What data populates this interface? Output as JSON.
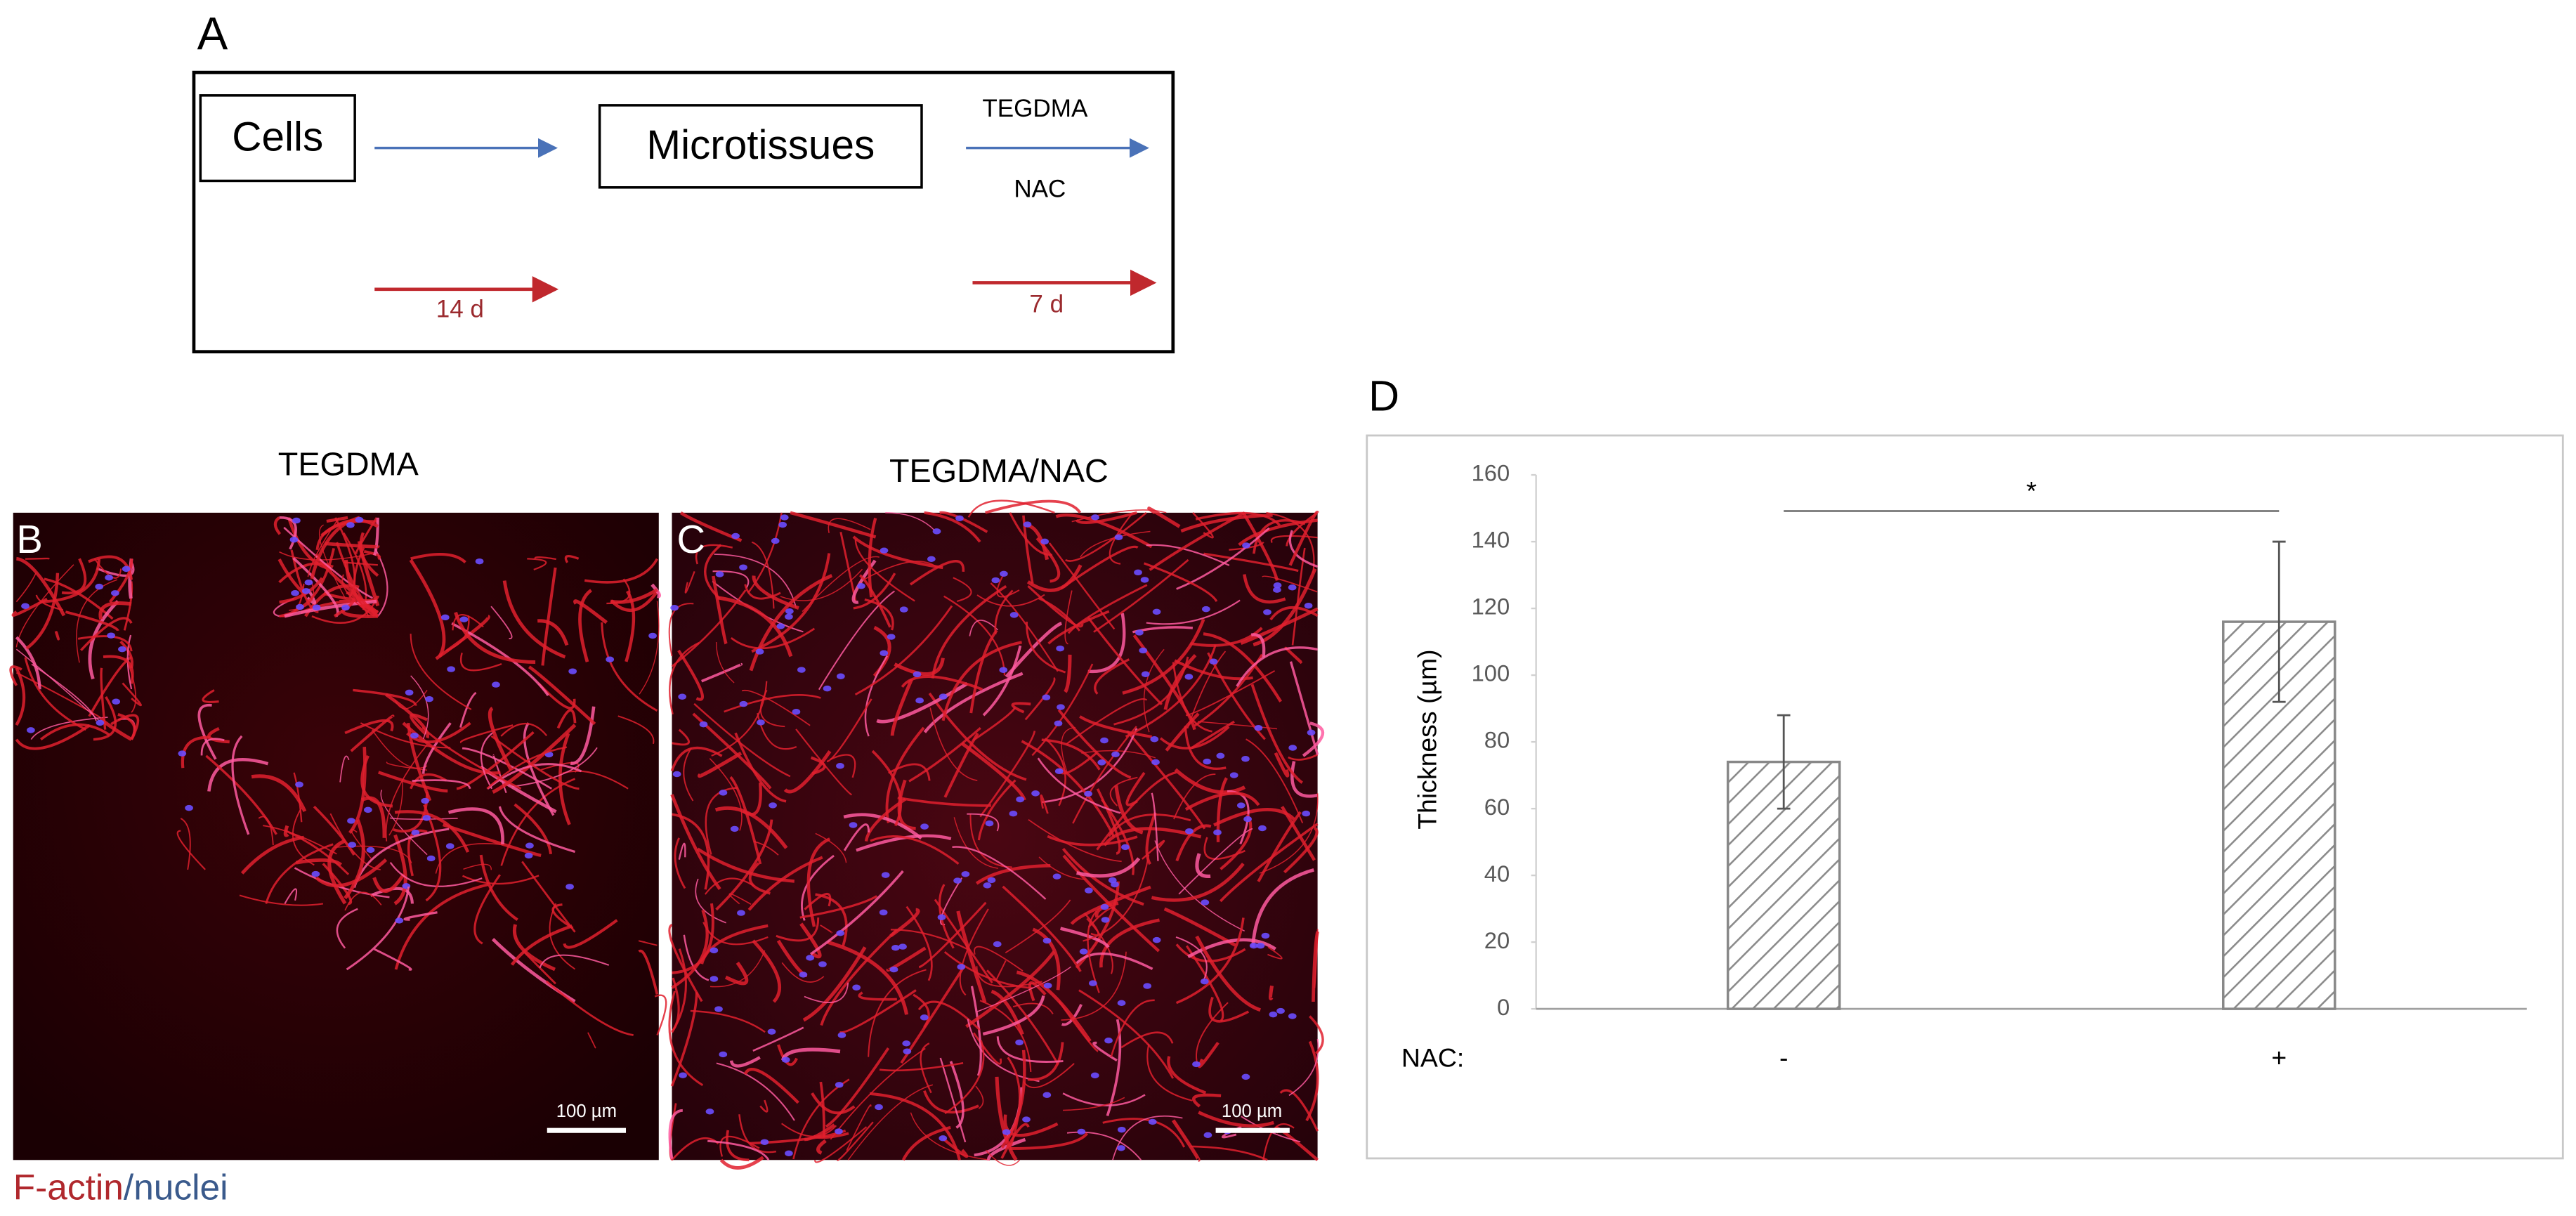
{
  "panel_a": {
    "label": "A",
    "step_1": "Cells",
    "step_2": "Microtissues",
    "treatment_1": "TEGDMA",
    "treatment_2": "NAC",
    "duration_1": "14 d",
    "duration_2": "7 d"
  },
  "panel_b": {
    "label": "B",
    "title": "TEGDMA",
    "scale_bar": "100 µm"
  },
  "panel_c": {
    "label": "C",
    "title": "TEGDMA/NAC",
    "scale_bar": "100 µm"
  },
  "caption": {
    "stain_1": "F-actin",
    "stain_2": "/nuclei"
  },
  "chart_data": {
    "type": "bar",
    "panel_label": "D",
    "ylabel": "Thickness (µm)",
    "xlabel": "NAC:",
    "categories": [
      "-",
      "+"
    ],
    "values": [
      74,
      116
    ],
    "errors": [
      14,
      24
    ],
    "color": "#888888",
    "ylim": [
      0,
      160
    ],
    "yticks": [
      0,
      20,
      40,
      60,
      80,
      100,
      120,
      140,
      160
    ],
    "significance": "*"
  }
}
